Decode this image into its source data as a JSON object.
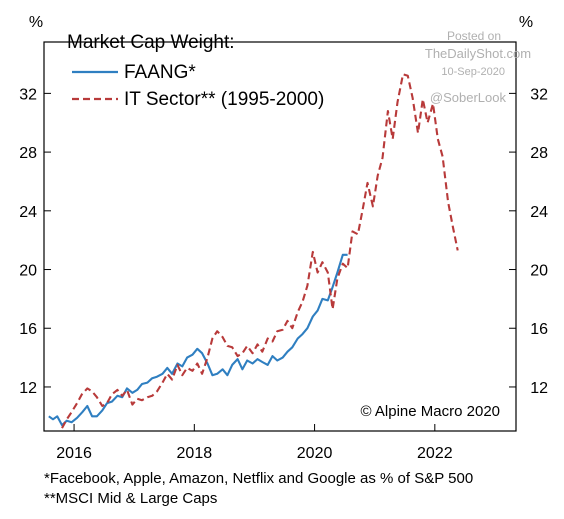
{
  "chart_data": {
    "type": "line",
    "title": "Market Cap Weight:",
    "y_unit_left": "%",
    "y_unit_right": "%",
    "ylim": [
      9,
      35.5
    ],
    "y_ticks": [
      12,
      16,
      20,
      24,
      28,
      32
    ],
    "xlim": [
      2015.5,
      2023.35
    ],
    "x_ticks": [
      2016,
      2018,
      2020,
      2022
    ],
    "x_tick_labels": [
      "2016",
      "2018",
      "2020",
      "2022"
    ],
    "legend_position": "top-left",
    "series": [
      {
        "name": "FAANG*",
        "color": "#2f7fc1",
        "style": "solid",
        "points": [
          [
            2015.58,
            10.0
          ],
          [
            2015.65,
            9.8
          ],
          [
            2015.72,
            10.0
          ],
          [
            2015.8,
            9.4
          ],
          [
            2015.88,
            9.7
          ],
          [
            2015.96,
            9.6
          ],
          [
            2016.05,
            9.9
          ],
          [
            2016.14,
            10.3
          ],
          [
            2016.22,
            10.7
          ],
          [
            2016.3,
            10.0
          ],
          [
            2016.38,
            10.0
          ],
          [
            2016.47,
            10.4
          ],
          [
            2016.55,
            10.9
          ],
          [
            2016.63,
            11.0
          ],
          [
            2016.72,
            11.4
          ],
          [
            2016.8,
            11.3
          ],
          [
            2016.88,
            11.9
          ],
          [
            2016.97,
            11.6
          ],
          [
            2017.05,
            11.8
          ],
          [
            2017.13,
            12.2
          ],
          [
            2017.22,
            12.3
          ],
          [
            2017.3,
            12.6
          ],
          [
            2017.38,
            12.7
          ],
          [
            2017.47,
            12.9
          ],
          [
            2017.55,
            13.3
          ],
          [
            2017.63,
            12.9
          ],
          [
            2017.72,
            13.6
          ],
          [
            2017.8,
            13.4
          ],
          [
            2017.88,
            14.0
          ],
          [
            2017.97,
            14.2
          ],
          [
            2018.05,
            14.6
          ],
          [
            2018.13,
            14.3
          ],
          [
            2018.22,
            13.6
          ],
          [
            2018.3,
            12.8
          ],
          [
            2018.38,
            12.9
          ],
          [
            2018.47,
            13.2
          ],
          [
            2018.55,
            12.8
          ],
          [
            2018.63,
            13.5
          ],
          [
            2018.72,
            13.9
          ],
          [
            2018.8,
            13.2
          ],
          [
            2018.88,
            13.8
          ],
          [
            2018.97,
            13.6
          ],
          [
            2019.05,
            13.9
          ],
          [
            2019.13,
            13.7
          ],
          [
            2019.22,
            13.5
          ],
          [
            2019.3,
            14.1
          ],
          [
            2019.38,
            13.8
          ],
          [
            2019.47,
            14.0
          ],
          [
            2019.55,
            14.4
          ],
          [
            2019.63,
            14.7
          ],
          [
            2019.72,
            15.3
          ],
          [
            2019.8,
            15.6
          ],
          [
            2019.88,
            16.0
          ],
          [
            2019.97,
            16.8
          ],
          [
            2020.05,
            17.2
          ],
          [
            2020.13,
            18.0
          ],
          [
            2020.22,
            17.9
          ],
          [
            2020.3,
            18.8
          ],
          [
            2020.38,
            19.8
          ],
          [
            2020.47,
            21.0
          ],
          [
            2020.55,
            21.0
          ]
        ]
      },
      {
        "name": "IT Sector** (1995-2000)",
        "color": "#b83a3a",
        "style": "dashed",
        "points": [
          [
            2015.8,
            9.2
          ],
          [
            2015.88,
            9.8
          ],
          [
            2015.96,
            10.3
          ],
          [
            2016.05,
            10.9
          ],
          [
            2016.13,
            11.5
          ],
          [
            2016.22,
            11.9
          ],
          [
            2016.3,
            11.7
          ],
          [
            2016.38,
            11.3
          ],
          [
            2016.47,
            10.7
          ],
          [
            2016.55,
            10.9
          ],
          [
            2016.63,
            11.5
          ],
          [
            2016.72,
            11.8
          ],
          [
            2016.8,
            11.4
          ],
          [
            2016.88,
            11.8
          ],
          [
            2016.97,
            10.8
          ],
          [
            2017.05,
            11.2
          ],
          [
            2017.13,
            11.1
          ],
          [
            2017.22,
            11.3
          ],
          [
            2017.3,
            11.4
          ],
          [
            2017.38,
            11.7
          ],
          [
            2017.47,
            12.3
          ],
          [
            2017.55,
            12.9
          ],
          [
            2017.63,
            12.5
          ],
          [
            2017.72,
            13.5
          ],
          [
            2017.8,
            12.8
          ],
          [
            2017.88,
            13.3
          ],
          [
            2017.97,
            13.1
          ],
          [
            2018.05,
            13.6
          ],
          [
            2018.13,
            12.9
          ],
          [
            2018.22,
            14.0
          ],
          [
            2018.3,
            15.3
          ],
          [
            2018.38,
            15.8
          ],
          [
            2018.47,
            15.4
          ],
          [
            2018.55,
            14.8
          ],
          [
            2018.63,
            14.7
          ],
          [
            2018.72,
            14.1
          ],
          [
            2018.8,
            14.3
          ],
          [
            2018.88,
            14.8
          ],
          [
            2018.97,
            14.3
          ],
          [
            2019.05,
            14.9
          ],
          [
            2019.13,
            14.4
          ],
          [
            2019.22,
            15.3
          ],
          [
            2019.3,
            15.1
          ],
          [
            2019.38,
            15.8
          ],
          [
            2019.47,
            15.9
          ],
          [
            2019.55,
            16.5
          ],
          [
            2019.63,
            16.0
          ],
          [
            2019.72,
            17.1
          ],
          [
            2019.8,
            17.8
          ],
          [
            2019.88,
            18.9
          ],
          [
            2019.97,
            21.2
          ],
          [
            2020.05,
            19.8
          ],
          [
            2020.13,
            20.5
          ],
          [
            2020.22,
            19.8
          ],
          [
            2020.3,
            17.3
          ],
          [
            2020.38,
            19.4
          ],
          [
            2020.47,
            20.4
          ],
          [
            2020.55,
            20.1
          ],
          [
            2020.63,
            22.6
          ],
          [
            2020.72,
            22.4
          ],
          [
            2020.8,
            24.1
          ],
          [
            2020.88,
            25.9
          ],
          [
            2020.97,
            24.3
          ],
          [
            2021.05,
            26.4
          ],
          [
            2021.13,
            27.6
          ],
          [
            2021.22,
            30.8
          ],
          [
            2021.3,
            28.9
          ],
          [
            2021.38,
            31.4
          ],
          [
            2021.47,
            33.3
          ],
          [
            2021.55,
            33.2
          ],
          [
            2021.63,
            31.7
          ],
          [
            2021.72,
            29.3
          ],
          [
            2021.8,
            31.6
          ],
          [
            2021.88,
            30.0
          ],
          [
            2021.97,
            31.3
          ],
          [
            2022.05,
            28.9
          ],
          [
            2022.13,
            27.7
          ],
          [
            2022.22,
            24.6
          ],
          [
            2022.3,
            22.9
          ],
          [
            2022.38,
            21.3
          ]
        ]
      }
    ]
  },
  "watermark": {
    "posted_on": "Posted on",
    "site": "TheDailyShot.com",
    "date": "10-Sep-2020",
    "handle": "@SoberLook"
  },
  "attribution": "© Alpine Macro 2020",
  "footnotes": [
    "*Facebook, Apple, Amazon, Netflix and Google as % of S&P 500",
    "**MSCI Mid & Large Caps"
  ]
}
